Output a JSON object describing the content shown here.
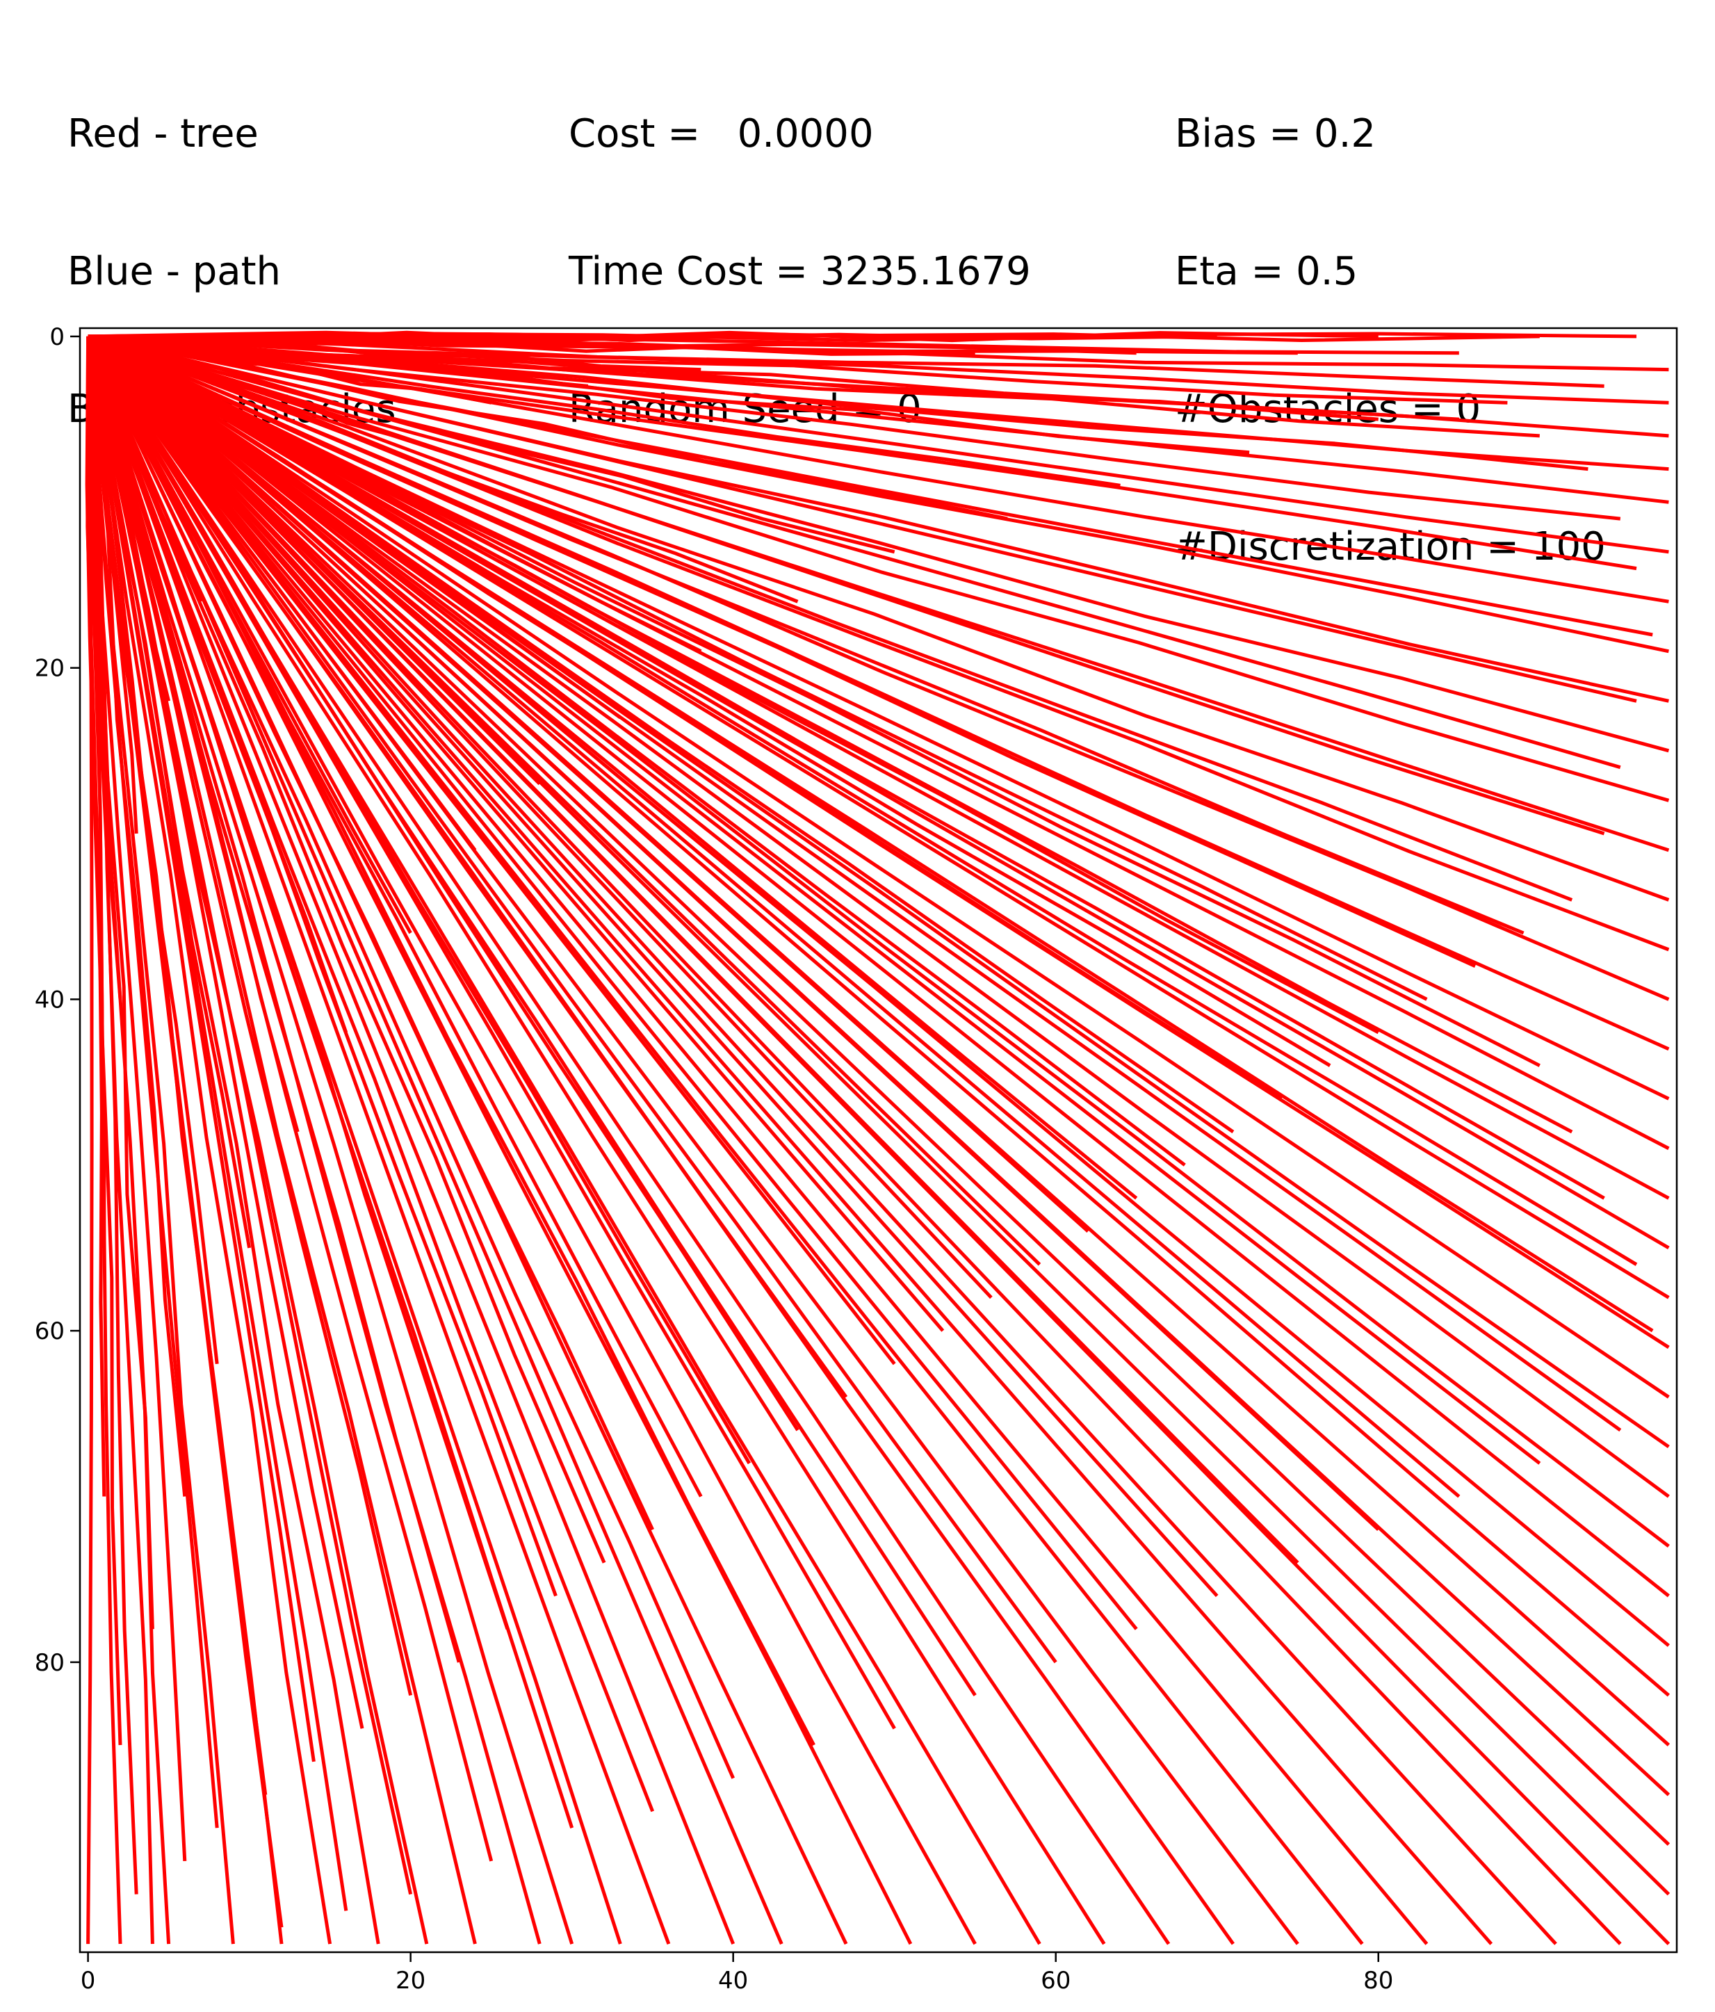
{
  "header": {
    "legend_lines": [
      "Red - tree",
      "Blue - path",
      "Black - obstacles"
    ],
    "stats_lines": [
      "Cost =   0.0000",
      "Time Cost = 3235.1679",
      "Random Seed = 0"
    ],
    "params_lines": [
      "Bias = 0.2",
      "Eta = 0.5",
      "#Obstacles = 0",
      "#Discretization = 100"
    ]
  },
  "chart_data": {
    "type": "line",
    "title": "",
    "xlabel": "",
    "ylabel": "",
    "xlim": [
      -0.5,
      98.5
    ],
    "ylim": [
      97.5,
      -0.5
    ],
    "y_inverted": true,
    "grid": false,
    "x_ticks": [
      "0",
      "20",
      "40",
      "60",
      "80"
    ],
    "y_ticks": [
      "0",
      "20",
      "40",
      "60",
      "80"
    ],
    "tree_color": "#ff0000",
    "root": [
      0,
      0
    ],
    "path": [],
    "obstacles": [],
    "tree_endpoints": [
      [
        0,
        97
      ],
      [
        2,
        97
      ],
      [
        4,
        97
      ],
      [
        5,
        97
      ],
      [
        9,
        97
      ],
      [
        12,
        97
      ],
      [
        15,
        97
      ],
      [
        18,
        97
      ],
      [
        21,
        97
      ],
      [
        24,
        97
      ],
      [
        28,
        97
      ],
      [
        30,
        97
      ],
      [
        33,
        97
      ],
      [
        36,
        97
      ],
      [
        40,
        97
      ],
      [
        43,
        97
      ],
      [
        47,
        97
      ],
      [
        51,
        97
      ],
      [
        55,
        97
      ],
      [
        59,
        97
      ],
      [
        63,
        97
      ],
      [
        67,
        97
      ],
      [
        71,
        97
      ],
      [
        75,
        97
      ],
      [
        79,
        97
      ],
      [
        83,
        97
      ],
      [
        87,
        97
      ],
      [
        91,
        97
      ],
      [
        95,
        97
      ],
      [
        98,
        97
      ],
      [
        98,
        94
      ],
      [
        98,
        91
      ],
      [
        98,
        88
      ],
      [
        98,
        85
      ],
      [
        98,
        82
      ],
      [
        98,
        79
      ],
      [
        98,
        76
      ],
      [
        98,
        73
      ],
      [
        98,
        70
      ],
      [
        98,
        67
      ],
      [
        98,
        64
      ],
      [
        98,
        61
      ],
      [
        98,
        58
      ],
      [
        98,
        55
      ],
      [
        98,
        52
      ],
      [
        98,
        49
      ],
      [
        98,
        46
      ],
      [
        98,
        43
      ],
      [
        98,
        40
      ],
      [
        98,
        37
      ],
      [
        98,
        34
      ],
      [
        98,
        31
      ],
      [
        98,
        28
      ],
      [
        98,
        25
      ],
      [
        98,
        22
      ],
      [
        98,
        19
      ],
      [
        98,
        16
      ],
      [
        98,
        13
      ],
      [
        98,
        10
      ],
      [
        98,
        8
      ],
      [
        98,
        6
      ],
      [
        98,
        4
      ],
      [
        98,
        2
      ],
      [
        96,
        0
      ],
      [
        90,
        0
      ],
      [
        80,
        0
      ],
      [
        70,
        0
      ],
      [
        60,
        0
      ],
      [
        50,
        0
      ],
      [
        40,
        0
      ],
      [
        3,
        94
      ],
      [
        6,
        92
      ],
      [
        8,
        90
      ],
      [
        11,
        88
      ],
      [
        14,
        86
      ],
      [
        17,
        84
      ],
      [
        20,
        82
      ],
      [
        23,
        80
      ],
      [
        26,
        78
      ],
      [
        29,
        76
      ],
      [
        32,
        74
      ],
      [
        35,
        72
      ],
      [
        38,
        70
      ],
      [
        41,
        68
      ],
      [
        44,
        66
      ],
      [
        47,
        64
      ],
      [
        50,
        62
      ],
      [
        53,
        60
      ],
      [
        56,
        58
      ],
      [
        59,
        56
      ],
      [
        62,
        54
      ],
      [
        65,
        52
      ],
      [
        68,
        50
      ],
      [
        71,
        48
      ],
      [
        74,
        46
      ],
      [
        77,
        44
      ],
      [
        80,
        42
      ],
      [
        83,
        40
      ],
      [
        86,
        38
      ],
      [
        89,
        36
      ],
      [
        92,
        34
      ],
      [
        94,
        30
      ],
      [
        95,
        26
      ],
      [
        96,
        22
      ],
      [
        97,
        18
      ],
      [
        96,
        14
      ],
      [
        95,
        11
      ],
      [
        93,
        8
      ],
      [
        90,
        6
      ],
      [
        85,
        5
      ],
      [
        2,
        85
      ],
      [
        4,
        78
      ],
      [
        6,
        70
      ],
      [
        8,
        62
      ],
      [
        10,
        55
      ],
      [
        13,
        48
      ],
      [
        16,
        42
      ],
      [
        20,
        36
      ],
      [
        24,
        31
      ],
      [
        28,
        27
      ],
      [
        33,
        23
      ],
      [
        38,
        19
      ],
      [
        44,
        16
      ],
      [
        50,
        13
      ],
      [
        57,
        11
      ],
      [
        64,
        9
      ],
      [
        72,
        7
      ],
      [
        80,
        5
      ],
      [
        88,
        4
      ],
      [
        94,
        3
      ],
      [
        1,
        70
      ],
      [
        1,
        55
      ],
      [
        2,
        40
      ],
      [
        3,
        30
      ],
      [
        5,
        22
      ],
      [
        7,
        16
      ],
      [
        10,
        11
      ],
      [
        14,
        8
      ],
      [
        19,
        6
      ],
      [
        25,
        4
      ],
      [
        31,
        3
      ],
      [
        38,
        2
      ],
      [
        46,
        1
      ],
      [
        55,
        1
      ],
      [
        65,
        1
      ],
      [
        75,
        1
      ],
      [
        85,
        1
      ],
      [
        12,
        96
      ],
      [
        16,
        95
      ],
      [
        20,
        94
      ],
      [
        25,
        92
      ],
      [
        30,
        90
      ],
      [
        35,
        89
      ],
      [
        40,
        87
      ],
      [
        45,
        85
      ],
      [
        50,
        84
      ],
      [
        55,
        82
      ],
      [
        60,
        80
      ],
      [
        65,
        78
      ],
      [
        70,
        76
      ],
      [
        75,
        74
      ],
      [
        80,
        72
      ],
      [
        85,
        70
      ],
      [
        90,
        68
      ],
      [
        95,
        66
      ],
      [
        97,
        60
      ],
      [
        96,
        56
      ],
      [
        94,
        52
      ],
      [
        92,
        48
      ],
      [
        90,
        44
      ]
    ]
  }
}
